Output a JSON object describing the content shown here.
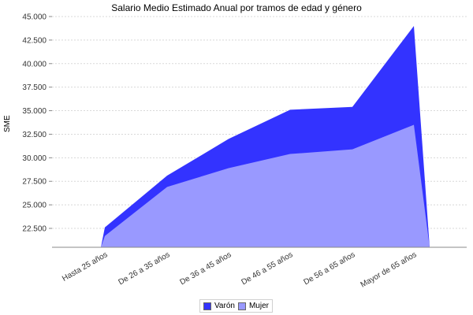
{
  "chart_data": {
    "type": "area",
    "title": "Salario Medio Estimado Anual por tramos de edad y género",
    "xlabel": "",
    "ylabel": "SME",
    "categories": [
      "Hasta 25 años",
      "De 26 a 35 años",
      "De 36 a 45 años",
      "De 46 a 55 años",
      "De 56 a 65 años",
      "Mayor de 65 años"
    ],
    "series": [
      {
        "name": "Varón",
        "color": "#3333ff",
        "values": [
          22600,
          28100,
          32000,
          35100,
          35400,
          44000
        ]
      },
      {
        "name": "Mujer",
        "color": "#9999ff",
        "values": [
          21700,
          26900,
          28900,
          30400,
          30900,
          33500
        ]
      }
    ],
    "ylim": [
      20500,
      45000
    ],
    "yticks": [
      "22.500",
      "25.000",
      "27.500",
      "30.000",
      "32.500",
      "35.000",
      "37.500",
      "40.000",
      "42.500",
      "45.000"
    ],
    "grid": true,
    "legend_position": "bottom"
  },
  "legend": [
    {
      "label": "Varón",
      "color": "#3333ff"
    },
    {
      "label": "Mujer",
      "color": "#9999ff"
    }
  ]
}
